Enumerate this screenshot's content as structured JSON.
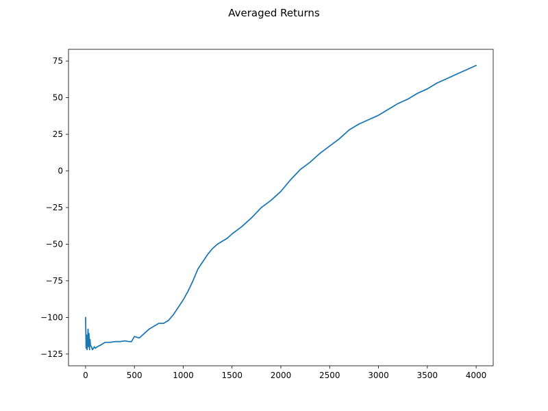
{
  "chart_data": {
    "type": "line",
    "title": "Averaged Returns",
    "xlabel": "",
    "ylabel": "",
    "xlim": [
      -175,
      4175
    ],
    "ylim": [
      -133,
      83
    ],
    "xticks": [
      0,
      500,
      1000,
      1500,
      2000,
      2500,
      3000,
      3500,
      4000
    ],
    "yticks": [
      -125,
      -100,
      -75,
      -50,
      -25,
      0,
      25,
      50,
      75
    ],
    "grid": false,
    "line_color": "#1f77b4",
    "series": [
      {
        "x": [
          0,
          5,
          10,
          15,
          20,
          25,
          30,
          35,
          40,
          45,
          50,
          60,
          70,
          80,
          90,
          100,
          120,
          150,
          200,
          250,
          300,
          350,
          400,
          450,
          470,
          500,
          550,
          600,
          650,
          700,
          750,
          800,
          850,
          900,
          950,
          1000,
          1050,
          1100,
          1150,
          1200,
          1250,
          1300,
          1350,
          1400,
          1450,
          1500,
          1600,
          1700,
          1800,
          1900,
          2000,
          2100,
          2200,
          2300,
          2400,
          2500,
          2600,
          2700,
          2800,
          2900,
          3000,
          3100,
          3200,
          3300,
          3400,
          3500,
          3600,
          3700,
          3800,
          3900,
          4000
        ],
        "y": [
          -100,
          -121,
          -112,
          -122,
          -118,
          -108,
          -120,
          -111,
          -122,
          -115,
          -119,
          -120,
          -122,
          -121,
          -120,
          -121,
          -120,
          -119,
          -117,
          -117,
          -116.5,
          -116.5,
          -116,
          -116.5,
          -116.5,
          -113,
          -114,
          -111,
          -108,
          -106,
          -104,
          -104,
          -102,
          -98,
          -93,
          -88,
          -82,
          -75,
          -67,
          -62,
          -57,
          -53,
          -50,
          -48,
          -46,
          -43,
          -38,
          -32,
          -25,
          -20,
          -14,
          -6,
          1,
          6,
          12,
          17,
          22,
          28,
          32,
          35,
          38,
          42,
          46,
          49,
          53,
          56,
          60,
          63,
          66,
          69,
          72
        ]
      }
    ]
  }
}
